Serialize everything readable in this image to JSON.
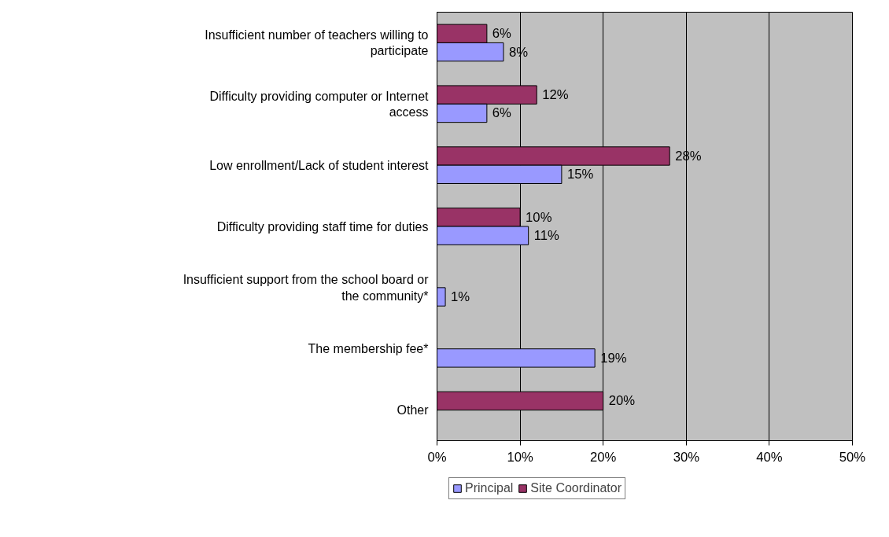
{
  "chart_data": {
    "type": "bar",
    "orientation": "horizontal",
    "categories": [
      "Insufficient number of teachers willing to participate",
      "Difficulty providing computer or Internet access",
      "Low enrollment/Lack of student interest",
      "Difficulty providing staff time for duties",
      "Insufficient support from the school board or the community*",
      "The membership fee*",
      "Other"
    ],
    "series": [
      {
        "name": "Site Coordinator",
        "color": "#993366",
        "values": [
          6,
          12,
          28,
          10,
          null,
          null,
          20
        ],
        "value_labels": [
          "6%",
          "12%",
          "28%",
          "10%",
          null,
          null,
          "20%"
        ]
      },
      {
        "name": "Principal",
        "color": "#9999ff",
        "values": [
          8,
          6,
          15,
          11,
          1,
          19,
          null
        ],
        "value_labels": [
          "8%",
          "6%",
          "15%",
          "11%",
          "1%",
          "19%",
          null
        ]
      }
    ],
    "xlim": [
      0,
      50
    ],
    "xticks": [
      {
        "value": 0,
        "label": "0%"
      },
      {
        "value": 10,
        "label": "10%"
      },
      {
        "value": 20,
        "label": "20%"
      },
      {
        "value": 30,
        "label": "30%"
      },
      {
        "value": 40,
        "label": "40%"
      },
      {
        "value": 50,
        "label": "50%"
      }
    ],
    "grid": "x",
    "legend": "bottom left"
  }
}
